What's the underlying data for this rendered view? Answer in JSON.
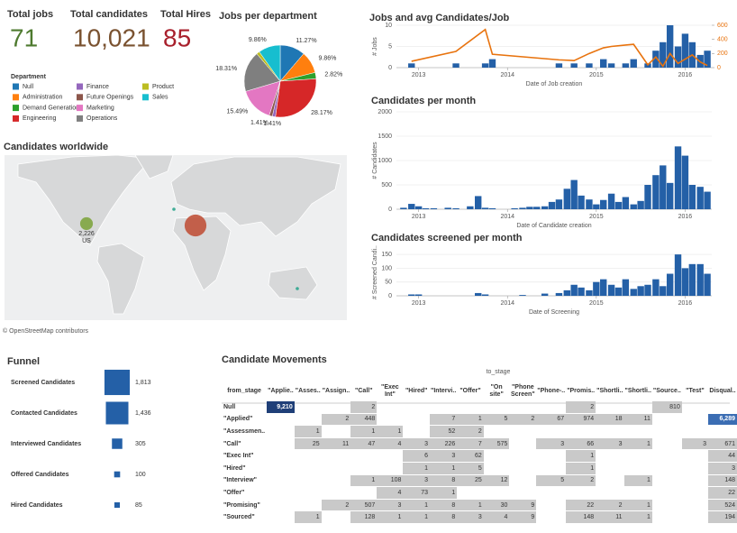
{
  "kpis": [
    {
      "title": "Total jobs",
      "value": "71",
      "color": "#4e7a2f"
    },
    {
      "title": "Total candidates",
      "value": "10,021",
      "color": "#7a5230"
    },
    {
      "title": "Total Hires",
      "value": "85",
      "color": "#a8202c"
    }
  ],
  "chart_data": [
    {
      "type": "pie",
      "title": "Jobs per department",
      "legend_title": "Department",
      "categories": [
        "Null",
        "Administration",
        "Demand Generation",
        "Engineering",
        "Finance",
        "Future Openings",
        "Marketing",
        "Operations",
        "Product",
        "Sales"
      ],
      "values": [
        11.27,
        9.86,
        2.82,
        28.17,
        1.41,
        1.41,
        15.49,
        18.31,
        1.41,
        9.86
      ],
      "value_labels": [
        "11.27%",
        "9.86%",
        "2.82%",
        "28.17%",
        "1.41%",
        "1.41%",
        "15.49%",
        "18.31%",
        null,
        "9.86%"
      ],
      "colors": [
        "#1f77b4",
        "#ff7f0e",
        "#2ca02c",
        "#d62728",
        "#9467bd",
        "#8c564b",
        "#e377c2",
        "#7f7f7f",
        "#bcbd22",
        "#17becf"
      ]
    },
    {
      "type": "combo",
      "title": "Jobs and avg Candidates/Job",
      "xlabel": "Date of Job creation",
      "ylabel": "# Jobs",
      "x": [
        2012.92,
        2013.42,
        2013.75,
        2013.83,
        2014.58,
        2014.75,
        2014.92,
        2015.08,
        2015.17,
        2015.33,
        2015.42,
        2015.58,
        2015.67,
        2015.75,
        2015.83,
        2015.92,
        2016.0,
        2016.08,
        2016.17,
        2016.25
      ],
      "xlim": [
        2012.75,
        2016.3
      ],
      "xticks": [
        2013,
        2014,
        2015,
        2016
      ],
      "ylim": [
        0,
        10
      ],
      "yticks": [
        0,
        5,
        10
      ],
      "y2lim": [
        0,
        600
      ],
      "y2ticks": [
        0,
        200,
        400,
        600
      ],
      "grid": true,
      "series": [
        {
          "kind": "bar",
          "color": "#2460a7",
          "values": [
            1,
            1,
            1,
            2,
            1,
            1,
            1,
            2,
            1,
            1,
            2,
            1,
            4,
            6,
            10,
            5,
            8,
            6,
            3,
            4
          ]
        },
        {
          "kind": "line",
          "axis": "y2",
          "color": "#e8730e",
          "values": [
            90,
            230,
            540,
            190,
            110,
            100,
            200,
            280,
            300,
            320,
            330,
            40,
            150,
            20,
            200,
            60,
            120,
            180,
            80,
            30
          ]
        }
      ]
    },
    {
      "type": "bar",
      "title": "Candidates per month",
      "xlabel": "Date of Candidate creation",
      "ylabel": "# Candidates",
      "x": [
        2012.83,
        2012.92,
        2013.0,
        2013.08,
        2013.17,
        2013.33,
        2013.42,
        2013.58,
        2013.67,
        2013.75,
        2013.83,
        2014.08,
        2014.17,
        2014.25,
        2014.33,
        2014.42,
        2014.5,
        2014.58,
        2014.67,
        2014.75,
        2014.83,
        2014.92,
        2015.0,
        2015.08,
        2015.17,
        2015.25,
        2015.33,
        2015.42,
        2015.5,
        2015.58,
        2015.67,
        2015.75,
        2015.83,
        2015.92,
        2016.0,
        2016.08,
        2016.17,
        2016.25
      ],
      "values": [
        30,
        110,
        60,
        20,
        20,
        30,
        20,
        60,
        270,
        30,
        20,
        20,
        30,
        50,
        50,
        60,
        150,
        200,
        420,
        600,
        280,
        200,
        100,
        190,
        320,
        150,
        250,
        100,
        170,
        500,
        700,
        900,
        540,
        1290,
        1100,
        500,
        460,
        360
      ],
      "xlim": [
        2012.75,
        2016.3
      ],
      "xticks": [
        2013,
        2014,
        2015,
        2016
      ],
      "ylim": [
        0,
        2000
      ],
      "yticks": [
        0,
        500,
        1000,
        1500,
        2000
      ],
      "grid": true,
      "color": "#2460a7"
    },
    {
      "type": "bar",
      "title": "Candidates screened per month",
      "xlabel": "Date of Screening",
      "ylabel": "# Screened Candi..",
      "x": [
        2012.92,
        2013.0,
        2013.67,
        2013.75,
        2014.17,
        2014.42,
        2014.58,
        2014.67,
        2014.75,
        2014.83,
        2014.92,
        2015.0,
        2015.08,
        2015.17,
        2015.25,
        2015.33,
        2015.42,
        2015.5,
        2015.58,
        2015.67,
        2015.75,
        2015.83,
        2015.92,
        2016.0,
        2016.08,
        2016.17,
        2016.25
      ],
      "values": [
        5,
        5,
        10,
        5,
        3,
        8,
        10,
        20,
        40,
        30,
        20,
        50,
        60,
        40,
        30,
        60,
        25,
        35,
        40,
        60,
        35,
        80,
        150,
        100,
        115,
        115,
        80
      ],
      "xlim": [
        2012.75,
        2016.3
      ],
      "xticks": [
        2013,
        2014,
        2015,
        2016
      ],
      "ylim": [
        0,
        170
      ],
      "yticks": [
        0,
        50,
        100,
        150
      ],
      "grid": true,
      "color": "#2460a7"
    },
    {
      "type": "map",
      "title": "Candidates worldwide",
      "credit": "© OpenStreetMap contributors",
      "locations": [
        "US",
        null,
        null,
        null
      ],
      "values": [
        2226,
        6500,
        20,
        20
      ],
      "value_labels": [
        "2,226",
        null,
        null,
        null
      ],
      "colors": [
        "#7fa53f",
        "#c0523a",
        "#2ca58d",
        "#2ca58d"
      ]
    },
    {
      "type": "funnel",
      "title": "Funnel",
      "categories": [
        "Screened Candidates",
        "Contacted Candidates",
        "Interviewed Candidates",
        "Offered Candidates",
        "Hired Candidates"
      ],
      "values": [
        1813,
        1436,
        305,
        100,
        85
      ],
      "value_labels": [
        "1,813",
        "1,436",
        "305",
        "100",
        "85"
      ],
      "color": "#2460a7"
    }
  ],
  "table": {
    "title": "Candidate Movements",
    "column_header": "to_stage",
    "row_header": "from_stage",
    "columns": [
      "\"Applie..",
      "\"Asses..",
      "\"Assign..",
      "\"Call\"",
      "\"Exec Int\"",
      "\"Hired\"",
      "\"Intervi..",
      "\"Offer\"",
      "\"On site\"",
      "\"Phone Screen\"",
      "\"Phone-..",
      "\"Promis..",
      "\"Shortli..",
      "\"Shortli..",
      "\"Source..",
      "\"Test\"",
      "Disqual.."
    ],
    "rows": [
      {
        "label": "Null",
        "cells": [
          "9,210",
          null,
          null,
          "2",
          null,
          null,
          null,
          null,
          null,
          null,
          null,
          "2",
          null,
          null,
          "810",
          null,
          null
        ]
      },
      {
        "label": "\"Applied\"",
        "cells": [
          null,
          null,
          "2",
          "448",
          null,
          null,
          "7",
          "1",
          "5",
          "2",
          "67",
          "974",
          "18",
          "11",
          null,
          null,
          "6,289"
        ]
      },
      {
        "label": "\"Assessmen..",
        "cells": [
          null,
          "1",
          null,
          "1",
          "1",
          null,
          "52",
          "2",
          null,
          null,
          null,
          null,
          null,
          null,
          null,
          null,
          null
        ]
      },
      {
        "label": "\"Call\"",
        "cells": [
          null,
          "25",
          "11",
          "47",
          "4",
          "3",
          "226",
          "7",
          "575",
          null,
          "3",
          "66",
          "3",
          "1",
          null,
          "3",
          "671"
        ]
      },
      {
        "label": "\"Exec Int\"",
        "cells": [
          null,
          null,
          null,
          null,
          null,
          "6",
          "3",
          "62",
          null,
          null,
          null,
          "1",
          null,
          null,
          null,
          null,
          "44"
        ]
      },
      {
        "label": "\"Hired\"",
        "cells": [
          null,
          null,
          null,
          null,
          null,
          "1",
          "1",
          "5",
          null,
          null,
          null,
          "1",
          null,
          null,
          null,
          null,
          "3"
        ]
      },
      {
        "label": "\"Interview\"",
        "cells": [
          null,
          null,
          null,
          "1",
          "108",
          "3",
          "8",
          "25",
          "12",
          null,
          "5",
          "2",
          null,
          "1",
          null,
          null,
          "148"
        ]
      },
      {
        "label": "\"Offer\"",
        "cells": [
          null,
          null,
          null,
          null,
          "4",
          "73",
          "1",
          null,
          null,
          null,
          null,
          null,
          null,
          null,
          null,
          null,
          "22"
        ]
      },
      {
        "label": "\"Promising\"",
        "cells": [
          null,
          null,
          "2",
          "507",
          "3",
          "1",
          "8",
          "1",
          "30",
          "9",
          null,
          "22",
          "2",
          "1",
          null,
          null,
          "524"
        ]
      },
      {
        "label": "\"Sourced\"",
        "cells": [
          null,
          "1",
          null,
          "128",
          "1",
          "1",
          "8",
          "3",
          "4",
          "9",
          null,
          "148",
          "11",
          "1",
          null,
          null,
          "194"
        ]
      }
    ]
  }
}
